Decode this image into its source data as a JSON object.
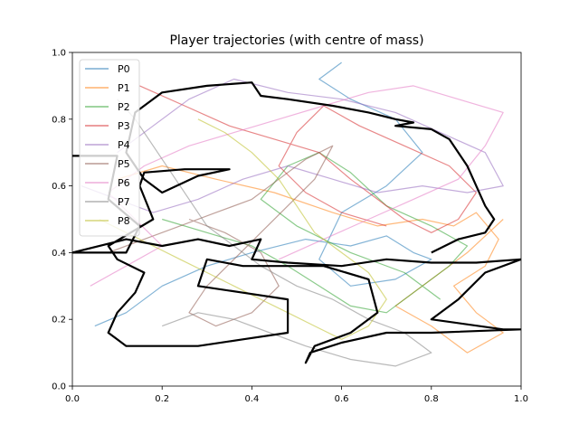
{
  "chart_data": {
    "type": "line",
    "title": "Player trajectories (with centre of mass)",
    "xlabel": "",
    "ylabel": "",
    "xlim": [
      0,
      1
    ],
    "ylim": [
      0,
      1
    ],
    "x_ticks": [
      "0.0",
      "0.2",
      "0.4",
      "0.6",
      "0.8",
      "1.0"
    ],
    "y_ticks": [
      "0.0",
      "0.2",
      "0.4",
      "0.6",
      "0.8",
      "1.0"
    ],
    "grid": false,
    "legend_position": "top-left",
    "series": [
      {
        "name": "P0",
        "color": "#1f77b4",
        "points": [
          [
            0.05,
            0.18
          ],
          [
            0.12,
            0.22
          ],
          [
            0.2,
            0.3
          ],
          [
            0.3,
            0.36
          ],
          [
            0.4,
            0.4
          ],
          [
            0.52,
            0.44
          ],
          [
            0.62,
            0.42
          ],
          [
            0.7,
            0.45
          ],
          [
            0.76,
            0.4
          ],
          [
            0.8,
            0.38
          ],
          [
            0.72,
            0.32
          ],
          [
            0.62,
            0.3
          ],
          [
            0.55,
            0.38
          ],
          [
            0.6,
            0.52
          ],
          [
            0.7,
            0.6
          ],
          [
            0.78,
            0.7
          ],
          [
            0.72,
            0.8
          ],
          [
            0.62,
            0.86
          ],
          [
            0.55,
            0.92
          ],
          [
            0.6,
            0.97
          ]
        ]
      },
      {
        "name": "P1",
        "color": "#ff7f0e",
        "points": [
          [
            0.1,
            0.62
          ],
          [
            0.2,
            0.66
          ],
          [
            0.32,
            0.62
          ],
          [
            0.45,
            0.58
          ],
          [
            0.58,
            0.52
          ],
          [
            0.68,
            0.48
          ],
          [
            0.78,
            0.5
          ],
          [
            0.85,
            0.48
          ],
          [
            0.9,
            0.52
          ],
          [
            0.95,
            0.44
          ],
          [
            0.92,
            0.36
          ],
          [
            0.85,
            0.3
          ],
          [
            0.9,
            0.22
          ],
          [
            0.96,
            0.16
          ],
          [
            0.88,
            0.1
          ],
          [
            0.8,
            0.18
          ],
          [
            0.72,
            0.24
          ],
          [
            0.8,
            0.32
          ],
          [
            0.88,
            0.4
          ],
          [
            0.96,
            0.5
          ]
        ]
      },
      {
        "name": "P2",
        "color": "#2ca02c",
        "points": [
          [
            0.2,
            0.5
          ],
          [
            0.3,
            0.46
          ],
          [
            0.4,
            0.42
          ],
          [
            0.48,
            0.36
          ],
          [
            0.55,
            0.3
          ],
          [
            0.62,
            0.24
          ],
          [
            0.7,
            0.22
          ],
          [
            0.78,
            0.3
          ],
          [
            0.84,
            0.36
          ],
          [
            0.88,
            0.42
          ],
          [
            0.8,
            0.48
          ],
          [
            0.7,
            0.54
          ],
          [
            0.62,
            0.64
          ],
          [
            0.55,
            0.7
          ],
          [
            0.48,
            0.66
          ],
          [
            0.42,
            0.56
          ],
          [
            0.5,
            0.48
          ],
          [
            0.62,
            0.4
          ],
          [
            0.74,
            0.34
          ],
          [
            0.82,
            0.26
          ]
        ]
      },
      {
        "name": "P3",
        "color": "#d62728",
        "points": [
          [
            0.15,
            0.9
          ],
          [
            0.25,
            0.84
          ],
          [
            0.35,
            0.78
          ],
          [
            0.45,
            0.74
          ],
          [
            0.55,
            0.7
          ],
          [
            0.62,
            0.62
          ],
          [
            0.68,
            0.56
          ],
          [
            0.74,
            0.5
          ],
          [
            0.8,
            0.46
          ],
          [
            0.86,
            0.5
          ],
          [
            0.9,
            0.58
          ],
          [
            0.84,
            0.66
          ],
          [
            0.74,
            0.72
          ],
          [
            0.64,
            0.78
          ],
          [
            0.56,
            0.84
          ],
          [
            0.5,
            0.76
          ],
          [
            0.46,
            0.66
          ],
          [
            0.52,
            0.58
          ],
          [
            0.6,
            0.52
          ],
          [
            0.7,
            0.48
          ]
        ]
      },
      {
        "name": "P4",
        "color": "#9467bd",
        "points": [
          [
            0.02,
            0.6
          ],
          [
            0.1,
            0.56
          ],
          [
            0.18,
            0.52
          ],
          [
            0.28,
            0.56
          ],
          [
            0.38,
            0.62
          ],
          [
            0.48,
            0.66
          ],
          [
            0.58,
            0.62
          ],
          [
            0.68,
            0.58
          ],
          [
            0.78,
            0.6
          ],
          [
            0.88,
            0.58
          ],
          [
            0.96,
            0.6
          ],
          [
            0.92,
            0.7
          ],
          [
            0.82,
            0.76
          ],
          [
            0.72,
            0.82
          ],
          [
            0.6,
            0.86
          ],
          [
            0.48,
            0.88
          ],
          [
            0.36,
            0.92
          ],
          [
            0.26,
            0.86
          ],
          [
            0.18,
            0.78
          ],
          [
            0.1,
            0.7
          ]
        ]
      },
      {
        "name": "P5",
        "color": "#8c564b",
        "points": [
          [
            0.08,
            0.4
          ],
          [
            0.16,
            0.44
          ],
          [
            0.24,
            0.48
          ],
          [
            0.32,
            0.52
          ],
          [
            0.4,
            0.56
          ],
          [
            0.46,
            0.62
          ],
          [
            0.52,
            0.68
          ],
          [
            0.58,
            0.72
          ],
          [
            0.54,
            0.62
          ],
          [
            0.48,
            0.54
          ],
          [
            0.42,
            0.46
          ],
          [
            0.36,
            0.38
          ],
          [
            0.3,
            0.3
          ],
          [
            0.26,
            0.22
          ],
          [
            0.32,
            0.18
          ],
          [
            0.4,
            0.22
          ],
          [
            0.46,
            0.3
          ],
          [
            0.42,
            0.4
          ],
          [
            0.34,
            0.46
          ],
          [
            0.26,
            0.5
          ]
        ]
      },
      {
        "name": "P6",
        "color": "#e377c2",
        "points": [
          [
            0.04,
            0.3
          ],
          [
            0.12,
            0.36
          ],
          [
            0.2,
            0.42
          ],
          [
            0.14,
            0.5
          ],
          [
            0.08,
            0.58
          ],
          [
            0.16,
            0.66
          ],
          [
            0.26,
            0.72
          ],
          [
            0.36,
            0.76
          ],
          [
            0.46,
            0.8
          ],
          [
            0.56,
            0.84
          ],
          [
            0.66,
            0.88
          ],
          [
            0.76,
            0.9
          ],
          [
            0.86,
            0.86
          ],
          [
            0.96,
            0.82
          ],
          [
            0.92,
            0.72
          ],
          [
            0.86,
            0.62
          ],
          [
            0.76,
            0.56
          ],
          [
            0.66,
            0.5
          ],
          [
            0.56,
            0.44
          ],
          [
            0.46,
            0.38
          ]
        ]
      },
      {
        "name": "P7",
        "color": "#7f7f7f",
        "points": [
          [
            0.1,
            0.86
          ],
          [
            0.14,
            0.8
          ],
          [
            0.18,
            0.72
          ],
          [
            0.22,
            0.64
          ],
          [
            0.26,
            0.56
          ],
          [
            0.3,
            0.48
          ],
          [
            0.36,
            0.42
          ],
          [
            0.42,
            0.36
          ],
          [
            0.5,
            0.3
          ],
          [
            0.58,
            0.26
          ],
          [
            0.66,
            0.2
          ],
          [
            0.74,
            0.16
          ],
          [
            0.8,
            0.1
          ],
          [
            0.72,
            0.06
          ],
          [
            0.62,
            0.08
          ],
          [
            0.52,
            0.12
          ],
          [
            0.44,
            0.16
          ],
          [
            0.36,
            0.2
          ],
          [
            0.28,
            0.22
          ],
          [
            0.2,
            0.18
          ]
        ]
      },
      {
        "name": "P8",
        "color": "#bcbd22",
        "points": [
          [
            0.06,
            0.5
          ],
          [
            0.12,
            0.46
          ],
          [
            0.18,
            0.42
          ],
          [
            0.24,
            0.38
          ],
          [
            0.3,
            0.34
          ],
          [
            0.36,
            0.3
          ],
          [
            0.42,
            0.26
          ],
          [
            0.48,
            0.22
          ],
          [
            0.54,
            0.18
          ],
          [
            0.6,
            0.14
          ],
          [
            0.66,
            0.18
          ],
          [
            0.7,
            0.26
          ],
          [
            0.66,
            0.34
          ],
          [
            0.6,
            0.4
          ],
          [
            0.54,
            0.46
          ],
          [
            0.5,
            0.54
          ],
          [
            0.46,
            0.62
          ],
          [
            0.4,
            0.7
          ],
          [
            0.34,
            0.76
          ],
          [
            0.28,
            0.8
          ]
        ]
      }
    ],
    "centre_of_mass": {
      "color": "#000000",
      "points": [
        [
          0.0,
          0.69
        ],
        [
          0.1,
          0.69
        ],
        [
          0.08,
          0.56
        ],
        [
          0.15,
          0.48
        ],
        [
          0.12,
          0.4
        ],
        [
          0.0,
          0.4
        ],
        [
          0.12,
          0.44
        ],
        [
          0.2,
          0.42
        ],
        [
          0.28,
          0.44
        ],
        [
          0.35,
          0.42
        ],
        [
          0.42,
          0.44
        ],
        [
          0.4,
          0.38
        ],
        [
          0.48,
          0.37
        ],
        [
          0.6,
          0.36
        ],
        [
          0.7,
          0.38
        ],
        [
          0.8,
          0.37
        ],
        [
          0.9,
          0.37
        ],
        [
          1.0,
          0.38
        ],
        [
          0.92,
          0.34
        ],
        [
          0.86,
          0.26
        ],
        [
          0.8,
          0.2
        ],
        [
          0.96,
          0.17
        ],
        [
          1.0,
          0.17
        ],
        [
          0.8,
          0.16
        ],
        [
          0.7,
          0.16
        ],
        [
          0.6,
          0.13
        ],
        [
          0.53,
          0.1
        ],
        [
          0.52,
          0.07
        ],
        [
          0.54,
          0.12
        ],
        [
          0.62,
          0.16
        ],
        [
          0.68,
          0.22
        ],
        [
          0.66,
          0.32
        ],
        [
          0.56,
          0.36
        ],
        [
          0.48,
          0.36
        ],
        [
          0.38,
          0.36
        ],
        [
          0.3,
          0.38
        ],
        [
          0.28,
          0.3
        ],
        [
          0.38,
          0.28
        ],
        [
          0.48,
          0.26
        ],
        [
          0.48,
          0.16
        ],
        [
          0.38,
          0.14
        ],
        [
          0.28,
          0.12
        ],
        [
          0.18,
          0.12
        ],
        [
          0.12,
          0.12
        ],
        [
          0.08,
          0.16
        ],
        [
          0.1,
          0.22
        ],
        [
          0.14,
          0.28
        ],
        [
          0.16,
          0.34
        ],
        [
          0.1,
          0.38
        ],
        [
          0.08,
          0.42
        ],
        [
          0.18,
          0.5
        ],
        [
          0.15,
          0.6
        ],
        [
          0.16,
          0.64
        ],
        [
          0.25,
          0.65
        ],
        [
          0.35,
          0.65
        ],
        [
          0.28,
          0.63
        ],
        [
          0.2,
          0.58
        ],
        [
          0.16,
          0.62
        ],
        [
          0.12,
          0.7
        ],
        [
          0.14,
          0.82
        ],
        [
          0.2,
          0.88
        ],
        [
          0.3,
          0.9
        ],
        [
          0.4,
          0.91
        ],
        [
          0.42,
          0.87
        ],
        [
          0.48,
          0.86
        ],
        [
          0.58,
          0.84
        ],
        [
          0.66,
          0.82
        ],
        [
          0.72,
          0.8
        ],
        [
          0.76,
          0.79
        ],
        [
          0.72,
          0.78
        ],
        [
          0.8,
          0.77
        ],
        [
          0.84,
          0.74
        ],
        [
          0.86,
          0.7
        ],
        [
          0.88,
          0.66
        ],
        [
          0.9,
          0.6
        ],
        [
          0.92,
          0.54
        ],
        [
          0.94,
          0.5
        ],
        [
          0.92,
          0.46
        ],
        [
          0.86,
          0.44
        ],
        [
          0.8,
          0.4
        ]
      ]
    }
  }
}
